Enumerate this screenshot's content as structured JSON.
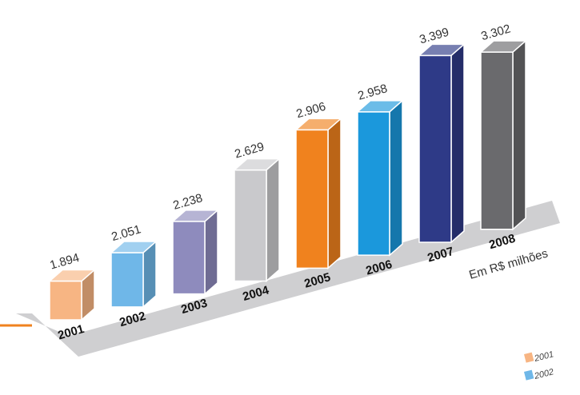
{
  "chart_data": {
    "type": "bar",
    "categories": [
      "2001",
      "2002",
      "2003",
      "2004",
      "2005",
      "2006",
      "2007",
      "2008"
    ],
    "values": [
      1894,
      2051,
      2238,
      2629,
      2906,
      2958,
      3399,
      3302
    ],
    "value_labels": [
      "1.894",
      "2.051",
      "2.238",
      "2.629",
      "2.906",
      "2.958",
      "3.399",
      "3.302"
    ],
    "colors": [
      "#f7b583",
      "#6fb7e8",
      "#8e8bbd",
      "#c9c9cc",
      "#f0821e",
      "#1b98dc",
      "#2e3a87",
      "#6a6a6d"
    ],
    "unit_label": "Em R$ milhões",
    "legend": [
      "2001",
      "2002"
    ],
    "legend_position": "bottom-right",
    "accent_color": "#f0821e",
    "baseline_color": "#cfcfd1",
    "grid": false
  }
}
